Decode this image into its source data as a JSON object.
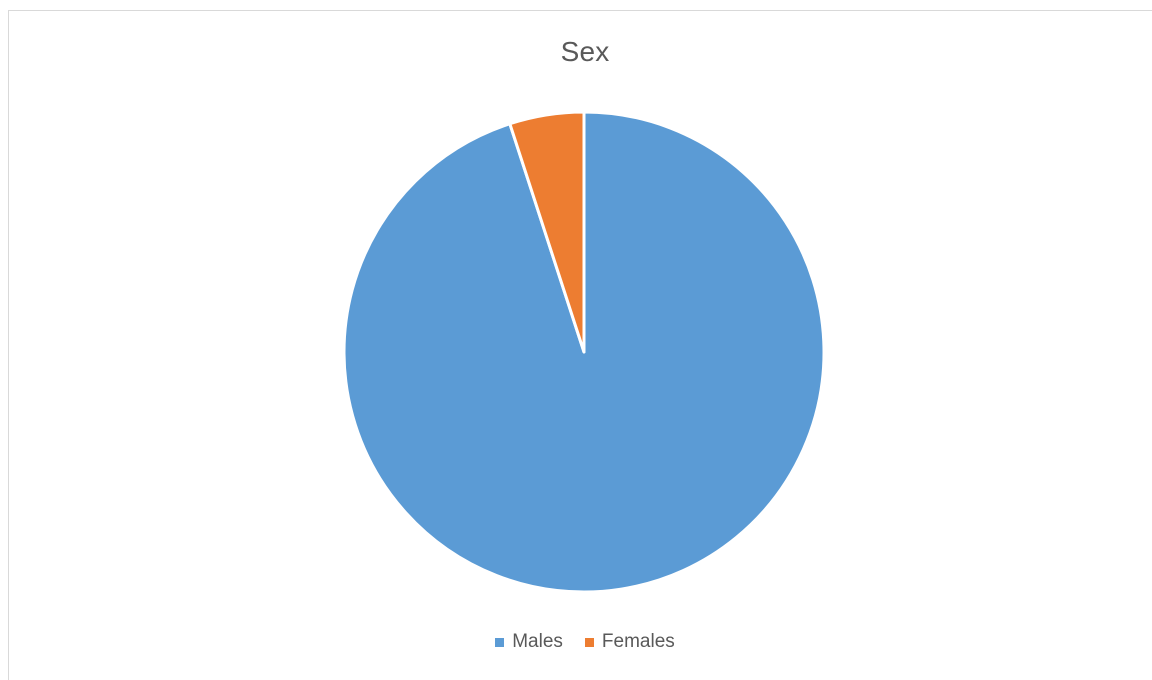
{
  "chart_data": {
    "type": "pie",
    "title": "Sex",
    "categories": [
      "Males",
      "Females"
    ],
    "values": [
      95,
      5
    ],
    "colors": [
      "#5B9BD5",
      "#ED7D31"
    ],
    "legend": "bottom",
    "start_angle_deg": 0,
    "direction": "clockwise",
    "slice_border_color": "#FFFFFF"
  }
}
